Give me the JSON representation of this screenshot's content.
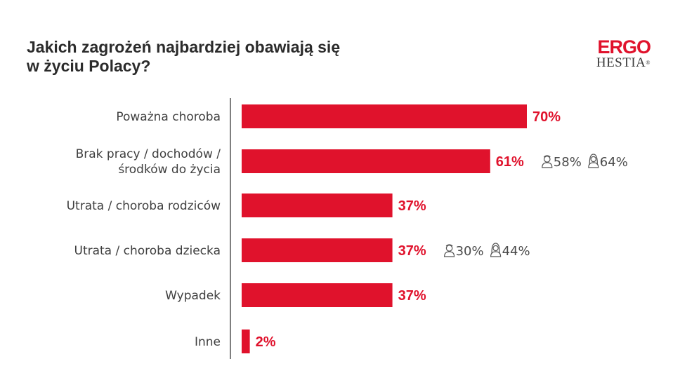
{
  "title": "Jakich zagrożeń najbardziej obawiają się w życiu Polacy?",
  "logo": {
    "line1": "ERGO",
    "line2": "HESTIA",
    "mark": "®"
  },
  "colors": {
    "bar": "#e0122c",
    "value": "#e0122c",
    "axis": "#555555"
  },
  "chart_data": {
    "type": "bar",
    "orientation": "horizontal",
    "title": "Jakich zagrożeń najbardziej obawiają się w życiu Polacy?",
    "categories": [
      [
        "Poważna choroba"
      ],
      [
        "Brak pracy / dochodów /",
        "środków do życia"
      ],
      [
        "Utrata / choroba rodziców"
      ],
      [
        "Utrata / choroba dziecka"
      ],
      [
        "Wypadek"
      ],
      [
        "Inne"
      ]
    ],
    "values": [
      70,
      61,
      37,
      37,
      37,
      2
    ],
    "value_labels": [
      "70%",
      "61%",
      "37%",
      "37%",
      "37%",
      "2%"
    ],
    "unit": "%",
    "xlim": [
      0,
      100
    ],
    "grid": false,
    "gender_breakdown": [
      null,
      {
        "men": "58%",
        "women": "64%",
        "men_icon": "man-icon",
        "women_icon": "woman-icon"
      },
      null,
      {
        "men": "30%",
        "women": "44%",
        "men_icon": "man-icon",
        "women_icon": "woman-icon"
      },
      null,
      null
    ]
  }
}
